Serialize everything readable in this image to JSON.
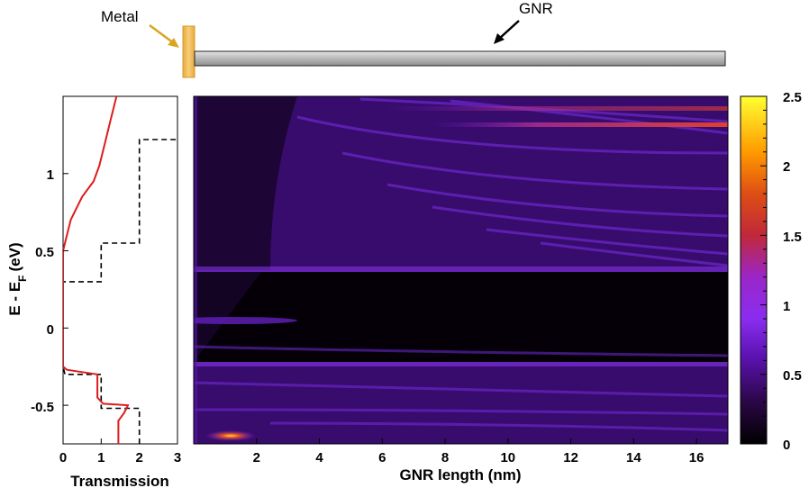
{
  "schematic": {
    "metal_label": "Metal",
    "gnr_label": "GNR",
    "metal_color": "#f2c46a",
    "arrow_color_metal": "#d9a520",
    "gnr_color": "#bdbdbd"
  },
  "chart_data": [
    {
      "type": "line",
      "ylabel": "E - E",
      "ylabel_sub": "F",
      "ylabel_unit": "(eV)",
      "xlabel": "Transmission",
      "xlim": [
        0,
        3
      ],
      "ylim": [
        -0.75,
        1.5
      ],
      "x_ticks": [
        "0",
        "1",
        "2",
        "3"
      ],
      "y_ticks": [
        "-0.5",
        "0",
        "0.5",
        "1"
      ],
      "series": [
        {
          "style": "solid",
          "color": "#dd1c1c",
          "points": [
            [
              1.45,
              -0.75
            ],
            [
              1.45,
              -0.6
            ],
            [
              1.6,
              -0.55
            ],
            [
              1.7,
              -0.5
            ],
            [
              1.05,
              -0.49
            ],
            [
              0.9,
              -0.45
            ],
            [
              0.9,
              -0.3
            ],
            [
              0.1,
              -0.27
            ],
            [
              0.0,
              -0.25
            ],
            [
              0.0,
              0.5
            ],
            [
              0.05,
              0.55
            ],
            [
              0.2,
              0.7
            ],
            [
              0.5,
              0.85
            ],
            [
              0.8,
              0.95
            ],
            [
              0.95,
              1.05
            ],
            [
              1.1,
              1.2
            ],
            [
              1.25,
              1.35
            ],
            [
              1.4,
              1.5
            ]
          ]
        },
        {
          "style": "dashed",
          "color": "#000000",
          "points": [
            [
              2,
              -0.75
            ],
            [
              2,
              -0.52
            ],
            [
              1,
              -0.52
            ],
            [
              1,
              -0.3
            ],
            [
              0.05,
              -0.3
            ],
            [
              0,
              -0.25
            ],
            [
              0,
              0.3
            ],
            [
              1,
              0.3
            ],
            [
              1,
              0.55
            ],
            [
              2,
              0.55
            ],
            [
              2,
              1.22
            ],
            [
              3,
              1.22
            ]
          ]
        }
      ]
    },
    {
      "type": "heatmap",
      "xlabel": "GNR length (nm)",
      "xlim": [
        0,
        17
      ],
      "ylim": [
        -0.75,
        1.5
      ],
      "x_ticks": [
        "2",
        "4",
        "6",
        "8",
        "10",
        "12",
        "14",
        "16"
      ],
      "colorbar": {
        "min": 0,
        "max": 2.5,
        "ticks": [
          "0",
          "0.5",
          "1",
          "1.5",
          "2",
          "2.5"
        ],
        "colormap": [
          "#000000",
          "#3a0a5a",
          "#7a1fe0",
          "#a02cc8",
          "#c0283a",
          "#e86a10",
          "#ffa500",
          "#ffff33"
        ]
      },
      "features": {
        "gap_energy_range": [
          -0.23,
          0.35
        ],
        "bright_band_energy": 1.3,
        "bright_band_x_range": [
          7,
          17
        ],
        "hot_spot": [
          1.2,
          -0.7
        ]
      }
    }
  ]
}
